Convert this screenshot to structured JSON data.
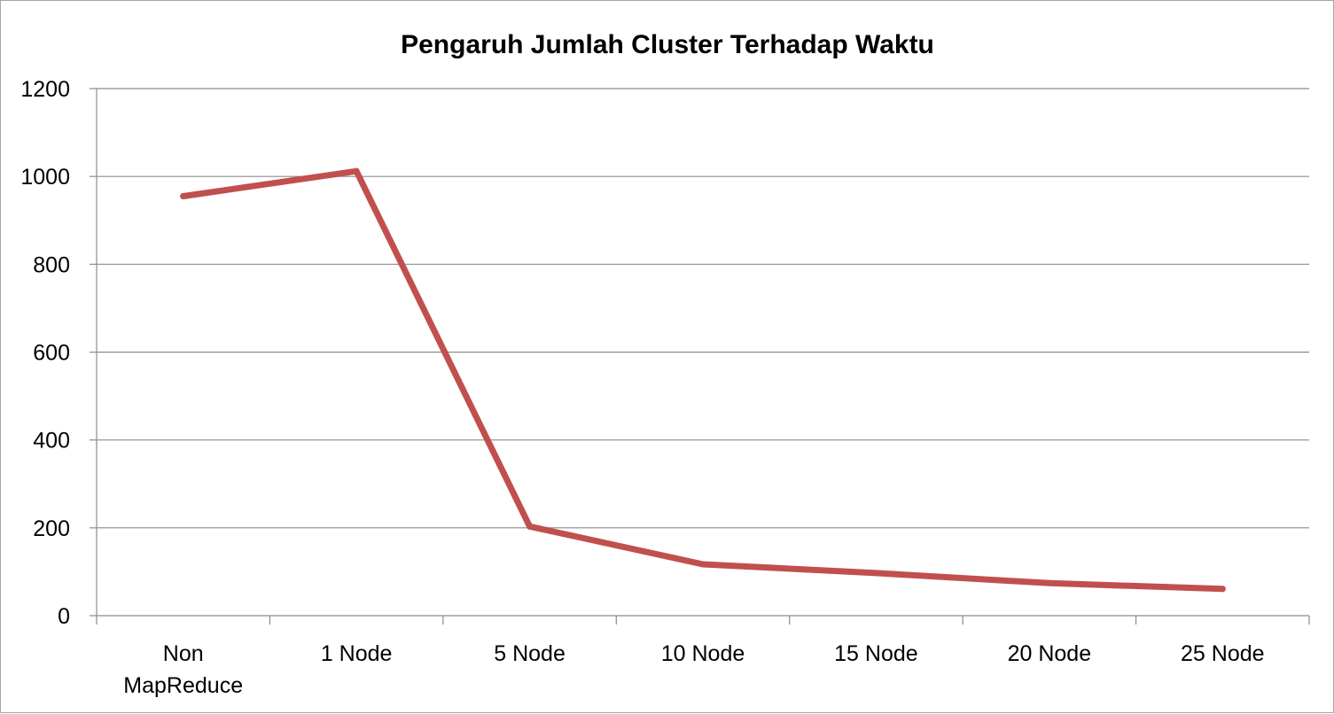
{
  "chart_data": {
    "type": "line",
    "title": "Pengaruh Jumlah Cluster Terhadap Waktu",
    "xlabel": "",
    "ylabel": "",
    "categories": [
      "Non MapReduce",
      "1 Node",
      "5 Node",
      "10 Node",
      "15 Node",
      "20 Node",
      "25 Node"
    ],
    "category_lines": [
      [
        "Non",
        "MapReduce"
      ],
      [
        "1 Node"
      ],
      [
        "5 Node"
      ],
      [
        "10 Node"
      ],
      [
        "15 Node"
      ],
      [
        "20 Node"
      ],
      [
        "25 Node"
      ]
    ],
    "series": [
      {
        "values": [
          955,
          1012,
          203,
          117,
          97,
          74,
          61
        ]
      }
    ],
    "ylim": [
      0,
      1200
    ],
    "yticks": [
      0,
      200,
      400,
      600,
      800,
      1000,
      1200
    ],
    "grid": true,
    "legend": "none",
    "line_color": "#c0504d",
    "grid_color": "#8c8c8c"
  }
}
